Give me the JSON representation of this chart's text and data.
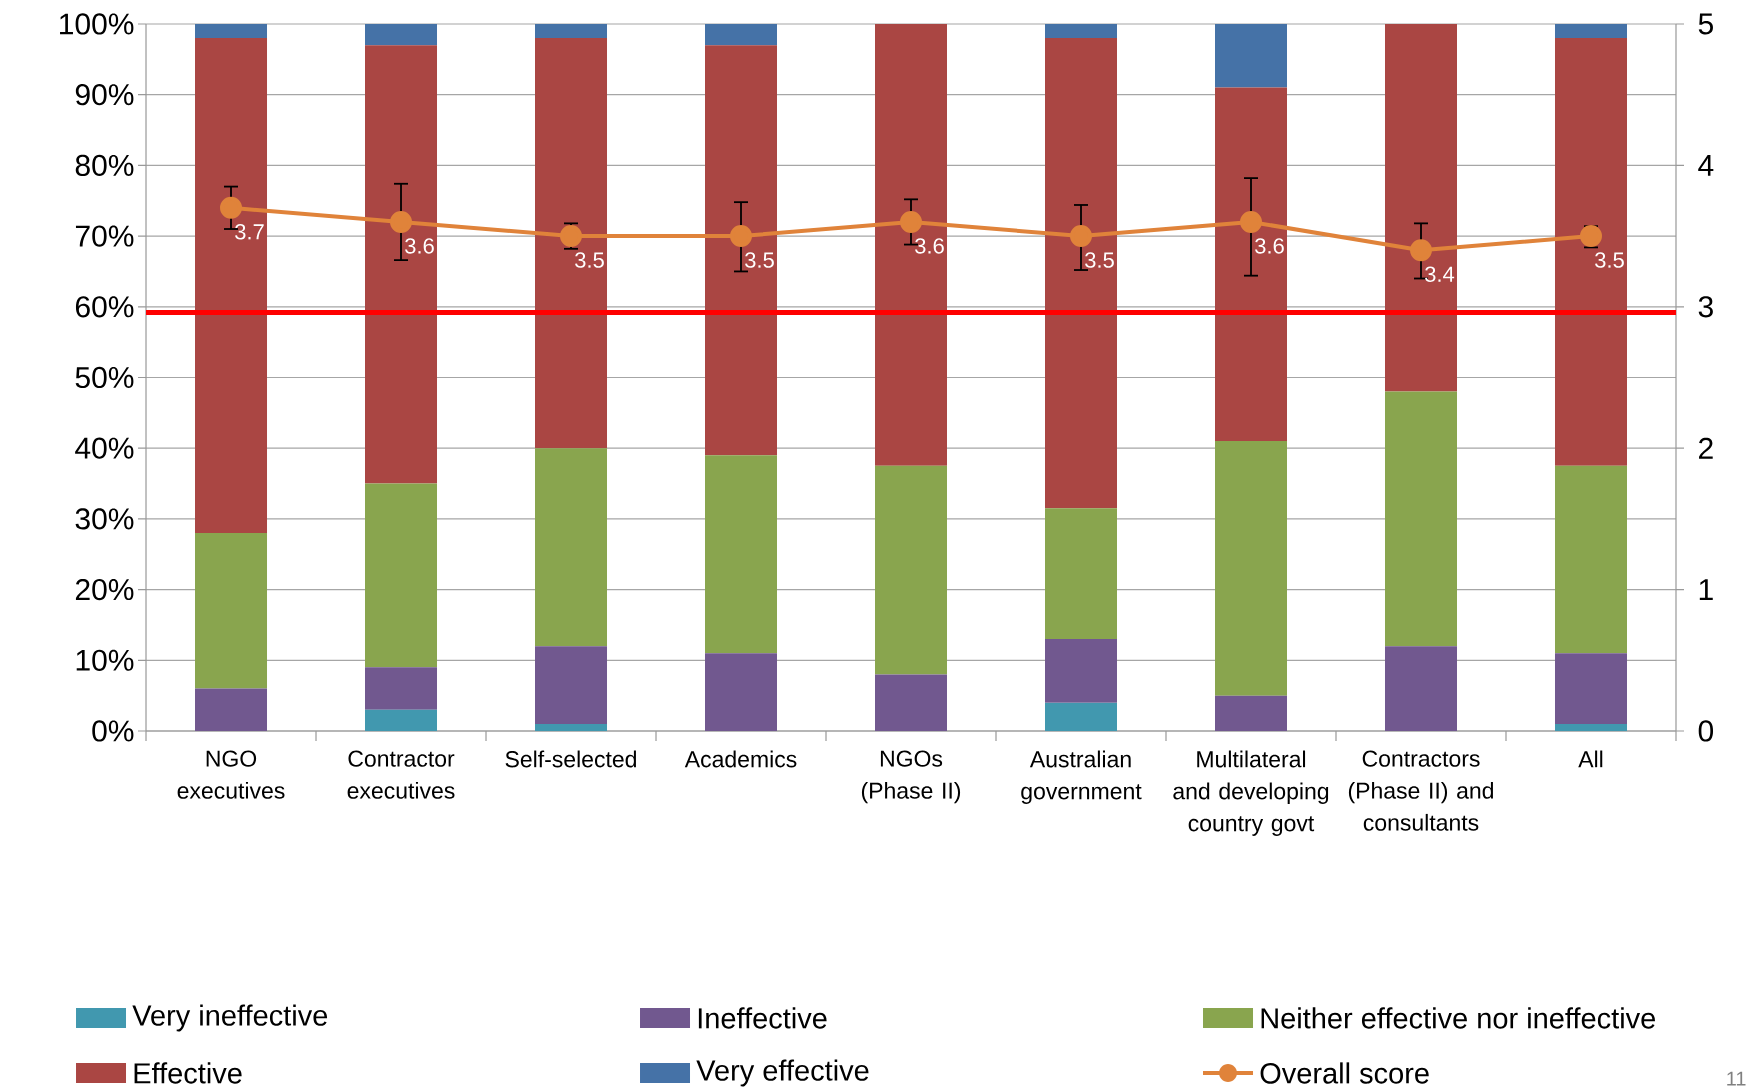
{
  "chart_data": {
    "type": "bar",
    "stacked": true,
    "categories": [
      "NGO executives",
      "Contractor executives",
      "Self-selected",
      "Academics",
      "NGOs (Phase II)",
      "Australian government",
      "Multilateral and developing country govt",
      "Contractors (Phase II) and consultants",
      "All"
    ],
    "series": [
      {
        "name": "Very ineffective",
        "color": "#4198af",
        "values": [
          0,
          3,
          1,
          0,
          0,
          4,
          0,
          0,
          1
        ]
      },
      {
        "name": "Ineffective",
        "color": "#71588f",
        "values": [
          6,
          6,
          11,
          11,
          8,
          9,
          5,
          12,
          10
        ]
      },
      {
        "name": "Neither effective nor ineffective",
        "color": "#89a54e",
        "values": [
          22,
          26,
          28,
          28,
          29.5,
          18.5,
          36,
          36,
          26.5
        ]
      },
      {
        "name": "Effective",
        "color": "#aa4643",
        "values": [
          70,
          62,
          58,
          58,
          62.5,
          66.5,
          50,
          52,
          60.5
        ]
      },
      {
        "name": "Very effective",
        "color": "#4572a7",
        "values": [
          2,
          3,
          2,
          3,
          0,
          2,
          9,
          0,
          2
        ]
      },
      {
        "name": "Overall score",
        "type": "line",
        "axis": "y2",
        "color": "#e0833a",
        "values": [
          3.7,
          3.6,
          3.5,
          3.5,
          3.6,
          3.5,
          3.6,
          3.4,
          3.5
        ],
        "value_labels": [
          "3.7",
          "3.6",
          "3.5",
          "3.5",
          "3.6",
          "3.5",
          "3.6",
          "3.4",
          "3.5"
        ],
        "errors": [
          [
            3.55,
            3.85
          ],
          [
            3.33,
            3.87
          ],
          [
            3.41,
            3.59
          ],
          [
            3.25,
            3.74
          ],
          [
            3.44,
            3.76
          ],
          [
            3.26,
            3.72
          ],
          [
            3.22,
            3.91
          ],
          [
            3.2,
            3.59
          ],
          [
            3.42,
            3.57
          ]
        ]
      }
    ],
    "ylim": [
      0,
      100
    ],
    "yticks": [
      {
        "value": 0,
        "label": "0%"
      },
      {
        "value": 10,
        "label": "10%"
      },
      {
        "value": 20,
        "label": "20%"
      },
      {
        "value": 30,
        "label": "30%"
      },
      {
        "value": 40,
        "label": "40%"
      },
      {
        "value": 50,
        "label": "50%"
      },
      {
        "value": 60,
        "label": "60%"
      },
      {
        "value": 70,
        "label": "70%"
      },
      {
        "value": 80,
        "label": "80%"
      },
      {
        "value": 90,
        "label": "90%"
      },
      {
        "value": 100,
        "label": "100%"
      }
    ],
    "y2lim": [
      0,
      5
    ],
    "y2ticks": [
      0,
      1,
      2,
      3,
      4,
      5
    ],
    "ref_lines": [
      {
        "axis": "y2",
        "value": 2.96,
        "color": "#ff0000"
      }
    ],
    "grid": "y",
    "legend": "bottom",
    "marker": "circle",
    "annotations": [
      "11"
    ]
  }
}
